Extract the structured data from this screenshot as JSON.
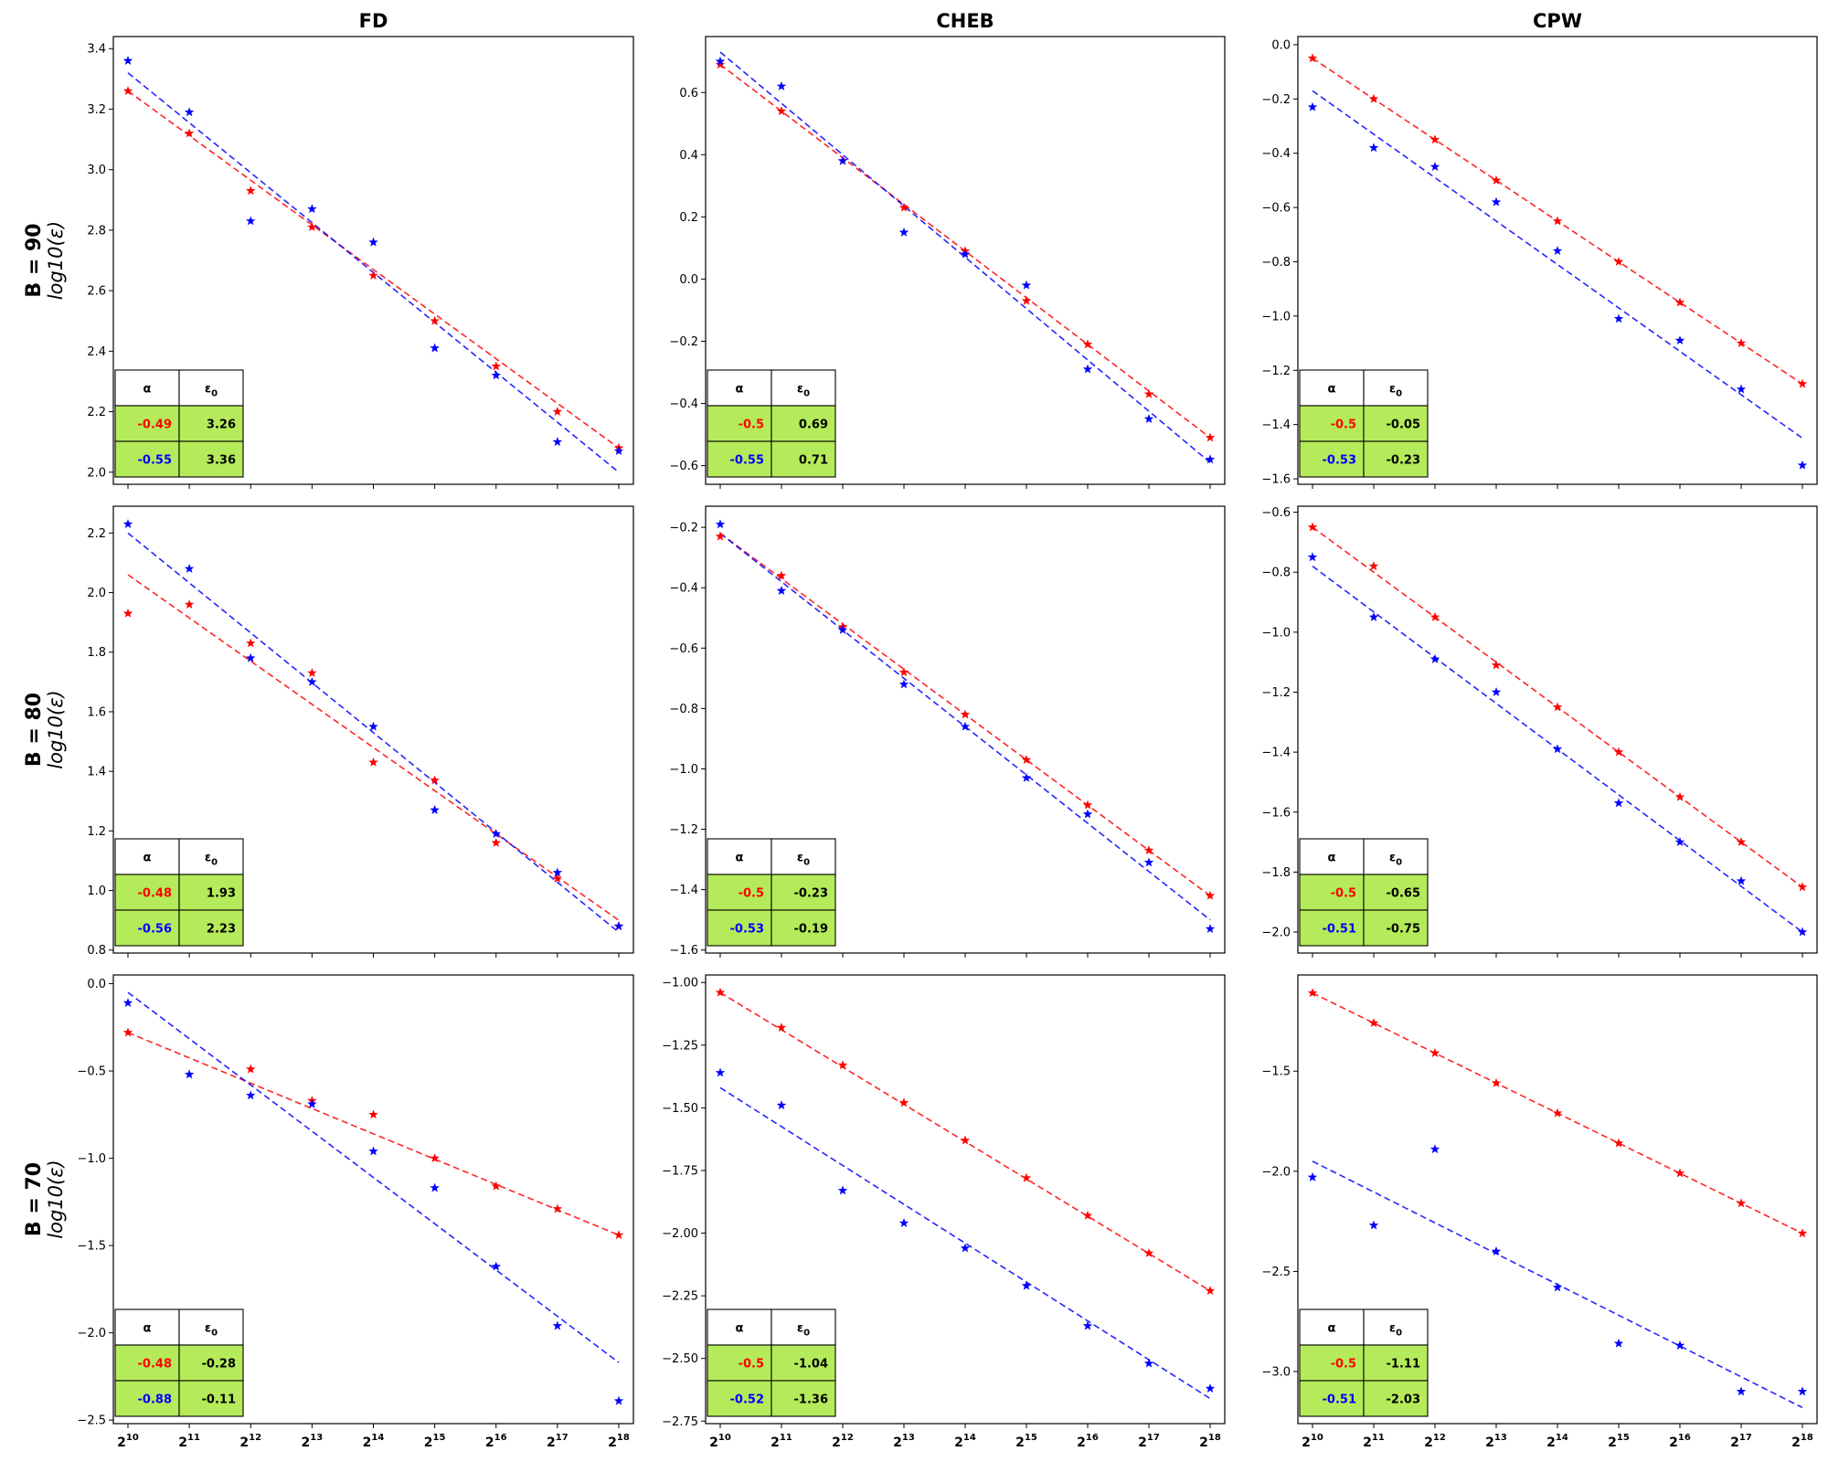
{
  "colors": {
    "red": "#ff0000",
    "blue": "#0000ff",
    "table_fill": "#b5eb5a"
  },
  "chart_data": {
    "type": "scatter",
    "columns": [
      "FD",
      "CHEB",
      "CPW"
    ],
    "rows": [
      {
        "label": "B = 90",
        "ylabel": "log10(ε)"
      },
      {
        "label": "B = 80",
        "ylabel": "log10(ε)"
      },
      {
        "label": "B = 70",
        "ylabel": "log10(ε)"
      }
    ],
    "x_exponents": [
      10,
      11,
      12,
      13,
      14,
      15,
      16,
      17,
      18
    ],
    "x_tick_base": "2",
    "table_headers": [
      "α",
      "ε0"
    ],
    "panels": [
      {
        "row": 0,
        "col": 0,
        "ylim": [
          1.96,
          3.44
        ],
        "yticks": [
          "2.0",
          "2.2",
          "2.4",
          "2.6",
          "2.8",
          "3.0",
          "3.2",
          "3.4"
        ],
        "series": [
          {
            "name": "red",
            "alpha": "-0.49",
            "eps0": "3.26",
            "points": [
              3.26,
              3.12,
              2.93,
              2.81,
              2.65,
              2.5,
              2.35,
              2.2,
              2.08
            ],
            "fit": [
              3.26,
              2.08
            ]
          },
          {
            "name": "blue",
            "alpha": "-0.55",
            "eps0": "3.36",
            "points": [
              3.36,
              3.19,
              2.83,
              2.87,
              2.76,
              2.41,
              2.32,
              2.1,
              2.07
            ],
            "fit": [
              3.32,
              2.0
            ]
          }
        ]
      },
      {
        "row": 0,
        "col": 1,
        "ylim": [
          -0.66,
          0.78
        ],
        "yticks": [
          "-0.6",
          "-0.4",
          "-0.2",
          "0.0",
          "0.2",
          "0.4",
          "0.6"
        ],
        "series": [
          {
            "name": "red",
            "alpha": "-0.5",
            "eps0": "0.69",
            "points": [
              0.69,
              0.54,
              0.38,
              0.23,
              0.09,
              -0.07,
              -0.21,
              -0.37,
              -0.51
            ],
            "fit": [
              0.69,
              -0.51
            ]
          },
          {
            "name": "blue",
            "alpha": "-0.55",
            "eps0": "0.71",
            "points": [
              0.7,
              0.62,
              0.38,
              0.15,
              0.08,
              -0.02,
              -0.29,
              -0.45,
              -0.58
            ],
            "fit": [
              0.73,
              -0.59
            ]
          }
        ]
      },
      {
        "row": 0,
        "col": 2,
        "ylim": [
          -1.62,
          0.03
        ],
        "yticks": [
          "-1.6",
          "-1.4",
          "-1.2",
          "-1.0",
          "-0.8",
          "-0.6",
          "-0.4",
          "-0.2",
          "0.0"
        ],
        "series": [
          {
            "name": "red",
            "alpha": "-0.5",
            "eps0": "-0.05",
            "points": [
              -0.05,
              -0.2,
              -0.35,
              -0.5,
              -0.65,
              -0.8,
              -0.95,
              -1.1,
              -1.25
            ],
            "fit": [
              -0.05,
              -1.25
            ]
          },
          {
            "name": "blue",
            "alpha": "-0.53",
            "eps0": "-0.23",
            "points": [
              -0.23,
              -0.38,
              -0.45,
              -0.58,
              -0.76,
              -1.01,
              -1.09,
              -1.27,
              -1.55
            ],
            "fit": [
              -0.17,
              -1.45
            ]
          }
        ]
      },
      {
        "row": 1,
        "col": 0,
        "ylim": [
          0.79,
          2.29
        ],
        "yticks": [
          "0.8",
          "1.0",
          "1.2",
          "1.4",
          "1.6",
          "1.8",
          "2.0",
          "2.2"
        ],
        "series": [
          {
            "name": "red",
            "alpha": "-0.48",
            "eps0": "1.93",
            "points": [
              1.93,
              1.96,
              1.83,
              1.73,
              1.43,
              1.37,
              1.16,
              1.04,
              0.88
            ],
            "fit": [
              2.06,
              0.9
            ]
          },
          {
            "name": "blue",
            "alpha": "-0.56",
            "eps0": "2.23",
            "points": [
              2.23,
              2.08,
              1.78,
              1.7,
              1.55,
              1.27,
              1.19,
              1.06,
              0.88
            ],
            "fit": [
              2.2,
              0.86
            ]
          }
        ]
      },
      {
        "row": 1,
        "col": 1,
        "ylim": [
          -1.61,
          -0.13
        ],
        "yticks": [
          "-1.6",
          "-1.4",
          "-1.2",
          "-1.0",
          "-0.8",
          "-0.6",
          "-0.4",
          "-0.2"
        ],
        "series": [
          {
            "name": "red",
            "alpha": "-0.5",
            "eps0": "-0.23",
            "points": [
              -0.23,
              -0.36,
              -0.53,
              -0.68,
              -0.82,
              -0.97,
              -1.12,
              -1.27,
              -1.42
            ],
            "fit": [
              -0.22,
              -1.42
            ]
          },
          {
            "name": "blue",
            "alpha": "-0.53",
            "eps0": "-0.19",
            "points": [
              -0.19,
              -0.41,
              -0.54,
              -0.72,
              -0.86,
              -1.03,
              -1.15,
              -1.31,
              -1.53
            ],
            "fit": [
              -0.22,
              -1.5
            ]
          }
        ]
      },
      {
        "row": 1,
        "col": 2,
        "ylim": [
          -2.07,
          -0.58
        ],
        "yticks": [
          "-2.0",
          "-1.8",
          "-1.6",
          "-1.4",
          "-1.2",
          "-1.0",
          "-0.8",
          "-0.6"
        ],
        "series": [
          {
            "name": "red",
            "alpha": "-0.5",
            "eps0": "-0.65",
            "points": [
              -0.65,
              -0.78,
              -0.95,
              -1.11,
              -1.25,
              -1.4,
              -1.55,
              -1.7,
              -1.85
            ],
            "fit": [
              -0.65,
              -1.85
            ]
          },
          {
            "name": "blue",
            "alpha": "-0.51",
            "eps0": "-0.75",
            "points": [
              -0.75,
              -0.95,
              -1.09,
              -1.2,
              -1.39,
              -1.57,
              -1.7,
              -1.83,
              -2.0
            ],
            "fit": [
              -0.78,
              -2.0
            ]
          }
        ]
      },
      {
        "row": 2,
        "col": 0,
        "ylim": [
          -2.52,
          0.05
        ],
        "yticks": [
          "-2.5",
          "-2.0",
          "-1.5",
          "-1.0",
          "-0.5",
          "0.0"
        ],
        "series": [
          {
            "name": "red",
            "alpha": "-0.48",
            "eps0": "-0.28",
            "points": [
              -0.28,
              null,
              -0.49,
              -0.67,
              -0.75,
              -1.0,
              -1.16,
              -1.29,
              -1.44
            ],
            "fit": [
              -0.28,
              -1.44
            ]
          },
          {
            "name": "blue",
            "alpha": "-0.88",
            "eps0": "-0.11",
            "points": [
              -0.11,
              -0.52,
              -0.64,
              -0.69,
              -0.96,
              -1.17,
              -1.62,
              -1.96,
              -2.39
            ],
            "fit": [
              -0.05,
              -2.17
            ]
          }
        ]
      },
      {
        "row": 2,
        "col": 1,
        "ylim": [
          -2.76,
          -0.97
        ],
        "yticks": [
          "-2.75",
          "-2.50",
          "-2.25",
          "-2.00",
          "-1.75",
          "-1.50",
          "-1.25",
          "-1.00"
        ],
        "series": [
          {
            "name": "red",
            "alpha": "-0.5",
            "eps0": "-1.04",
            "points": [
              -1.04,
              -1.18,
              -1.33,
              -1.48,
              -1.63,
              -1.78,
              -1.93,
              -2.08,
              -2.23
            ],
            "fit": [
              -1.04,
              -2.23
            ]
          },
          {
            "name": "blue",
            "alpha": "-0.52",
            "eps0": "-1.36",
            "points": [
              -1.36,
              -1.49,
              -1.83,
              -1.96,
              -2.06,
              -2.21,
              -2.37,
              -2.52,
              -2.62
            ],
            "fit": [
              -1.42,
              -2.66
            ]
          }
        ]
      },
      {
        "row": 2,
        "col": 2,
        "ylim": [
          -3.26,
          -1.02
        ],
        "yticks": [
          "-3.0",
          "-2.5",
          "-2.0",
          "-1.5"
        ],
        "series": [
          {
            "name": "red",
            "alpha": "-0.5",
            "eps0": "-1.11",
            "points": [
              -1.11,
              -1.26,
              -1.41,
              -1.56,
              -1.71,
              -1.86,
              -2.01,
              -2.16,
              -2.31
            ],
            "fit": [
              -1.11,
              -2.31
            ]
          },
          {
            "name": "blue",
            "alpha": "-0.51",
            "eps0": "-2.03",
            "points": [
              -2.03,
              -2.27,
              -1.89,
              -2.4,
              -2.58,
              -2.86,
              -2.87,
              -3.1,
              -3.1
            ],
            "fit": [
              -1.95,
              -3.18
            ]
          }
        ]
      }
    ]
  }
}
